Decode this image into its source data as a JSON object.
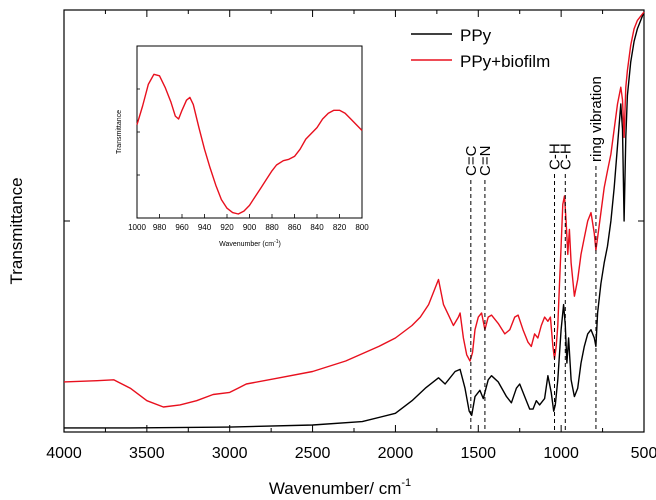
{
  "chart_data": {
    "type": "line",
    "xlabel": "Wavenumber/ cm",
    "xlabel_sup": "-1",
    "ylabel": "Transmittance",
    "xlim": [
      4000,
      500
    ],
    "x_reversed": true,
    "xticks": [
      4000,
      3500,
      3000,
      2500,
      2000,
      1500,
      1000,
      500
    ],
    "ylim": [
      0,
      1
    ],
    "y_ticklabels_shown": false,
    "legend_placement": "top-right",
    "series": [
      {
        "name": "PPy",
        "color": "#000000",
        "points": [
          [
            4000,
            0.005
          ],
          [
            3600,
            0.005
          ],
          [
            3000,
            0.007
          ],
          [
            2500,
            0.012
          ],
          [
            2200,
            0.02
          ],
          [
            2000,
            0.04
          ],
          [
            1900,
            0.07
          ],
          [
            1820,
            0.1
          ],
          [
            1740,
            0.125
          ],
          [
            1700,
            0.11
          ],
          [
            1640,
            0.14
          ],
          [
            1610,
            0.145
          ],
          [
            1580,
            0.1
          ],
          [
            1555,
            0.045
          ],
          [
            1540,
            0.035
          ],
          [
            1520,
            0.08
          ],
          [
            1490,
            0.095
          ],
          [
            1470,
            0.075
          ],
          [
            1440,
            0.12
          ],
          [
            1420,
            0.13
          ],
          [
            1380,
            0.115
          ],
          [
            1330,
            0.08
          ],
          [
            1300,
            0.065
          ],
          [
            1270,
            0.1
          ],
          [
            1250,
            0.11
          ],
          [
            1220,
            0.08
          ],
          [
            1190,
            0.05
          ],
          [
            1170,
            0.05
          ],
          [
            1150,
            0.07
          ],
          [
            1130,
            0.06
          ],
          [
            1100,
            0.075
          ],
          [
            1080,
            0.13
          ],
          [
            1060,
            0.09
          ],
          [
            1045,
            0.045
          ],
          [
            1035,
            0.06
          ],
          [
            1020,
            0.12
          ],
          [
            1000,
            0.24
          ],
          [
            985,
            0.3
          ],
          [
            975,
            0.25
          ],
          [
            965,
            0.16
          ],
          [
            955,
            0.22
          ],
          [
            940,
            0.12
          ],
          [
            920,
            0.08
          ],
          [
            900,
            0.1
          ],
          [
            880,
            0.16
          ],
          [
            860,
            0.2
          ],
          [
            840,
            0.23
          ],
          [
            820,
            0.24
          ],
          [
            800,
            0.22
          ],
          [
            790,
            0.2
          ],
          [
            780,
            0.28
          ],
          [
            760,
            0.35
          ],
          [
            740,
            0.4
          ],
          [
            720,
            0.44
          ],
          [
            700,
            0.5
          ],
          [
            680,
            0.58
          ],
          [
            660,
            0.68
          ],
          [
            640,
            0.78
          ],
          [
            630,
            0.72
          ],
          [
            620,
            0.5
          ],
          [
            610,
            0.7
          ],
          [
            600,
            0.8
          ],
          [
            580,
            0.88
          ],
          [
            560,
            0.93
          ],
          [
            540,
            0.96
          ],
          [
            520,
            0.98
          ],
          [
            500,
            1.0
          ]
        ]
      },
      {
        "name": "PPy+biofilm",
        "color": "#e8101e",
        "points": [
          [
            4000,
            0.115
          ],
          [
            3800,
            0.118
          ],
          [
            3700,
            0.12
          ],
          [
            3600,
            0.1
          ],
          [
            3500,
            0.07
          ],
          [
            3400,
            0.055
          ],
          [
            3300,
            0.06
          ],
          [
            3200,
            0.07
          ],
          [
            3100,
            0.085
          ],
          [
            3000,
            0.09
          ],
          [
            2950,
            0.1
          ],
          [
            2900,
            0.11
          ],
          [
            2700,
            0.125
          ],
          [
            2500,
            0.14
          ],
          [
            2300,
            0.165
          ],
          [
            2100,
            0.2
          ],
          [
            2000,
            0.22
          ],
          [
            1900,
            0.25
          ],
          [
            1850,
            0.27
          ],
          [
            1800,
            0.3
          ],
          [
            1760,
            0.34
          ],
          [
            1740,
            0.36
          ],
          [
            1710,
            0.3
          ],
          [
            1680,
            0.275
          ],
          [
            1650,
            0.25
          ],
          [
            1620,
            0.27
          ],
          [
            1610,
            0.28
          ],
          [
            1590,
            0.22
          ],
          [
            1570,
            0.18
          ],
          [
            1550,
            0.165
          ],
          [
            1535,
            0.185
          ],
          [
            1520,
            0.24
          ],
          [
            1500,
            0.27
          ],
          [
            1480,
            0.28
          ],
          [
            1460,
            0.24
          ],
          [
            1440,
            0.27
          ],
          [
            1420,
            0.275
          ],
          [
            1380,
            0.255
          ],
          [
            1340,
            0.23
          ],
          [
            1310,
            0.24
          ],
          [
            1280,
            0.27
          ],
          [
            1260,
            0.275
          ],
          [
            1230,
            0.24
          ],
          [
            1200,
            0.21
          ],
          [
            1180,
            0.2
          ],
          [
            1160,
            0.23
          ],
          [
            1140,
            0.22
          ],
          [
            1120,
            0.25
          ],
          [
            1100,
            0.27
          ],
          [
            1080,
            0.26
          ],
          [
            1065,
            0.27
          ],
          [
            1050,
            0.2
          ],
          [
            1040,
            0.17
          ],
          [
            1030,
            0.2
          ],
          [
            1020,
            0.25
          ],
          [
            1010,
            0.35
          ],
          [
            1000,
            0.44
          ],
          [
            990,
            0.54
          ],
          [
            980,
            0.56
          ],
          [
            970,
            0.5
          ],
          [
            960,
            0.42
          ],
          [
            950,
            0.48
          ],
          [
            940,
            0.4
          ],
          [
            920,
            0.32
          ],
          [
            900,
            0.36
          ],
          [
            880,
            0.42
          ],
          [
            860,
            0.46
          ],
          [
            840,
            0.5
          ],
          [
            820,
            0.52
          ],
          [
            800,
            0.47
          ],
          [
            790,
            0.43
          ],
          [
            780,
            0.46
          ],
          [
            760,
            0.52
          ],
          [
            740,
            0.58
          ],
          [
            720,
            0.62
          ],
          [
            700,
            0.66
          ],
          [
            680,
            0.72
          ],
          [
            660,
            0.78
          ],
          [
            640,
            0.82
          ],
          [
            630,
            0.79
          ],
          [
            620,
            0.7
          ],
          [
            610,
            0.82
          ],
          [
            600,
            0.86
          ],
          [
            580,
            0.92
          ],
          [
            560,
            0.96
          ],
          [
            540,
            0.98
          ],
          [
            520,
            0.99
          ],
          [
            500,
            1.0
          ]
        ]
      }
    ],
    "annotations": [
      {
        "text": "C=C",
        "x": 1545
      },
      {
        "text": "C=N",
        "x": 1460
      },
      {
        "text": "C-H",
        "x": 1040
      },
      {
        "text": "C-H",
        "x": 975
      },
      {
        "text": "ring vibration",
        "x": 790
      }
    ],
    "inset": {
      "type": "line",
      "xlabel": "Wavenumber  (cm",
      "xlabel_sup": "-1",
      "xlabel_tail": ")",
      "ylabel": "Transmittance",
      "xlim": [
        1000,
        800
      ],
      "xticks": [
        1000,
        980,
        960,
        940,
        920,
        900,
        880,
        860,
        840,
        820,
        800
      ],
      "ylim": [
        0,
        1
      ],
      "series": [
        {
          "color": "#e8101e",
          "points": [
            [
              1000,
              0.62
            ],
            [
              995,
              0.75
            ],
            [
              990,
              0.9
            ],
            [
              985,
              0.97
            ],
            [
              980,
              0.96
            ],
            [
              975,
              0.88
            ],
            [
              970,
              0.78
            ],
            [
              966,
              0.68
            ],
            [
              963,
              0.66
            ],
            [
              960,
              0.72
            ],
            [
              956,
              0.79
            ],
            [
              953,
              0.81
            ],
            [
              950,
              0.76
            ],
            [
              945,
              0.6
            ],
            [
              940,
              0.45
            ],
            [
              935,
              0.32
            ],
            [
              930,
              0.2
            ],
            [
              925,
              0.1
            ],
            [
              920,
              0.04
            ],
            [
              915,
              0.01
            ],
            [
              910,
              0.0
            ],
            [
              905,
              0.02
            ],
            [
              900,
              0.06
            ],
            [
              895,
              0.12
            ],
            [
              890,
              0.18
            ],
            [
              885,
              0.24
            ],
            [
              880,
              0.3
            ],
            [
              876,
              0.34
            ],
            [
              870,
              0.37
            ],
            [
              865,
              0.38
            ],
            [
              860,
              0.4
            ],
            [
              855,
              0.45
            ],
            [
              850,
              0.52
            ],
            [
              845,
              0.56
            ],
            [
              840,
              0.6
            ],
            [
              835,
              0.66
            ],
            [
              830,
              0.7
            ],
            [
              825,
              0.72
            ],
            [
              820,
              0.72
            ],
            [
              815,
              0.7
            ],
            [
              810,
              0.66
            ],
            [
              805,
              0.62
            ],
            [
              800,
              0.58
            ]
          ]
        }
      ]
    }
  }
}
